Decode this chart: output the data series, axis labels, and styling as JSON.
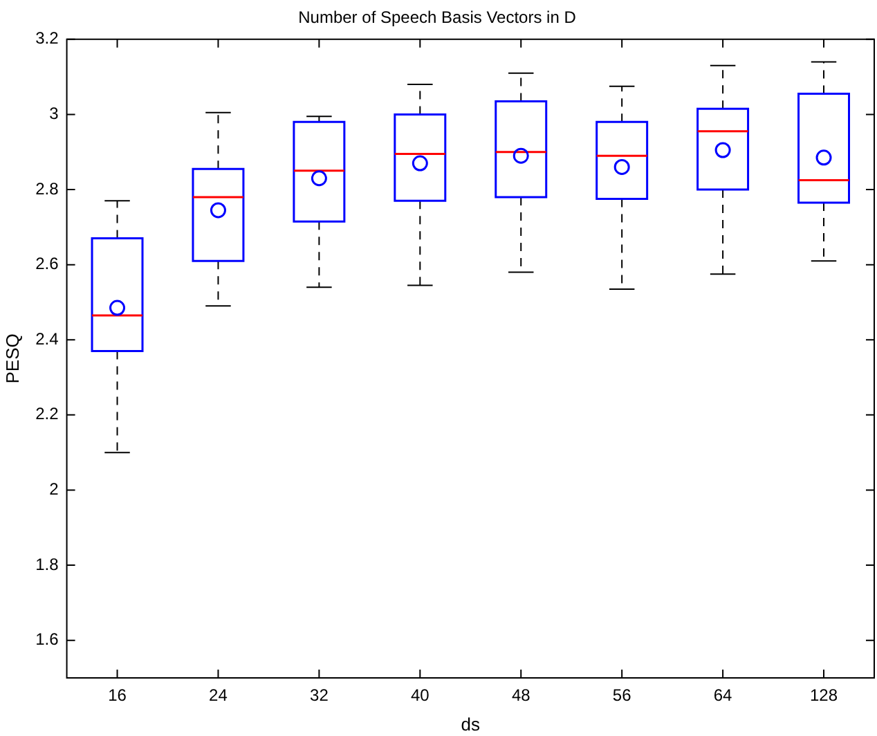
{
  "chart_data": {
    "type": "box",
    "title": "Number of Speech Basis Vectors in D",
    "xlabel": "ds",
    "ylabel": "PESQ",
    "categories": [
      "16",
      "24",
      "32",
      "40",
      "48",
      "56",
      "64",
      "128"
    ],
    "color": "#0000ff",
    "marker": "circle",
    "grid": false,
    "legend": false,
    "ylim": [
      1.5,
      3.2
    ],
    "yticks": [
      1.6,
      1.8,
      2,
      2.2,
      2.4,
      2.6,
      2.8,
      3,
      3.2
    ],
    "boxes": [
      {
        "low": 2.1,
        "q1": 2.37,
        "median": 2.465,
        "q3": 2.67,
        "high": 2.77,
        "mean": 2.485
      },
      {
        "low": 2.49,
        "q1": 2.61,
        "median": 2.78,
        "q3": 2.855,
        "high": 3.005,
        "mean": 2.745
      },
      {
        "low": 2.54,
        "q1": 2.715,
        "median": 2.85,
        "q3": 2.98,
        "high": 2.995,
        "mean": 2.83
      },
      {
        "low": 2.545,
        "q1": 2.77,
        "median": 2.895,
        "q3": 3.0,
        "high": 3.08,
        "mean": 2.87
      },
      {
        "low": 2.58,
        "q1": 2.78,
        "median": 2.9,
        "q3": 3.035,
        "high": 3.11,
        "mean": 2.89
      },
      {
        "low": 2.535,
        "q1": 2.775,
        "median": 2.89,
        "q3": 2.98,
        "high": 3.075,
        "mean": 2.86
      },
      {
        "low": 2.575,
        "q1": 2.8,
        "median": 2.955,
        "q3": 3.015,
        "high": 3.13,
        "mean": 2.905
      },
      {
        "low": 2.61,
        "q1": 2.765,
        "median": 2.825,
        "q3": 3.055,
        "high": 3.14,
        "mean": 2.885
      }
    ]
  }
}
